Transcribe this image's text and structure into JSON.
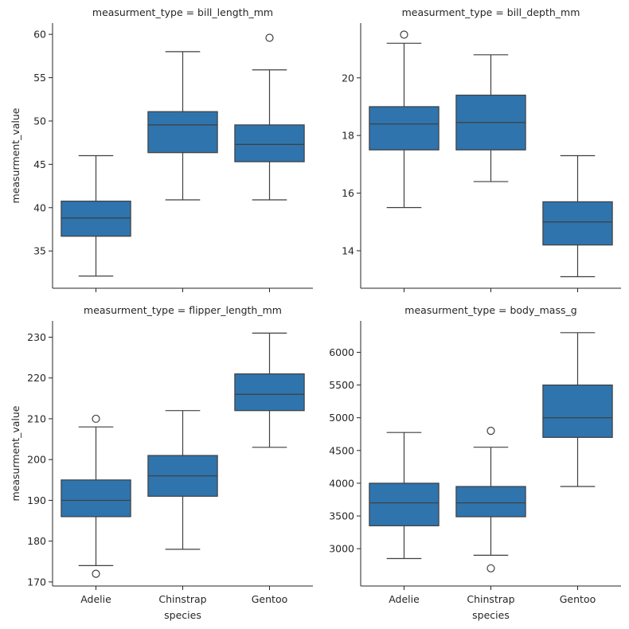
{
  "chart_data": [
    {
      "type": "box",
      "title": "measurment_type = bill_length_mm",
      "ylabel": "measurment_value",
      "xlabel": "",
      "ylim": [
        30.7,
        61.3
      ],
      "yticks": [
        35,
        40,
        45,
        50,
        55,
        60
      ],
      "categories": [
        "Adelie",
        "Chinstrap",
        "Gentoo"
      ],
      "show_xtick_labels": false,
      "boxes": [
        {
          "category": "Adelie",
          "whisker_low": 32.1,
          "q1": 36.7,
          "median": 38.8,
          "q3": 40.75,
          "whisker_high": 46.0,
          "outliers": []
        },
        {
          "category": "Chinstrap",
          "whisker_low": 40.9,
          "q1": 46.35,
          "median": 49.55,
          "q3": 51.08,
          "whisker_high": 58.0,
          "outliers": []
        },
        {
          "category": "Gentoo",
          "whisker_low": 40.9,
          "q1": 45.3,
          "median": 47.3,
          "q3": 49.55,
          "whisker_high": 55.9,
          "outliers": [
            59.6
          ]
        }
      ]
    },
    {
      "type": "box",
      "title": "measurment_type = bill_depth_mm",
      "ylabel": "",
      "xlabel": "",
      "ylim": [
        12.7,
        21.9
      ],
      "yticks": [
        14,
        16,
        18,
        20
      ],
      "categories": [
        "Adelie",
        "Chinstrap",
        "Gentoo"
      ],
      "show_xtick_labels": false,
      "boxes": [
        {
          "category": "Adelie",
          "whisker_low": 15.5,
          "q1": 17.5,
          "median": 18.4,
          "q3": 19.0,
          "whisker_high": 21.2,
          "outliers": [
            21.5
          ]
        },
        {
          "category": "Chinstrap",
          "whisker_low": 16.4,
          "q1": 17.5,
          "median": 18.45,
          "q3": 19.4,
          "whisker_high": 20.8,
          "outliers": []
        },
        {
          "category": "Gentoo",
          "whisker_low": 13.1,
          "q1": 14.2,
          "median": 15.0,
          "q3": 15.7,
          "whisker_high": 17.3,
          "outliers": []
        }
      ]
    },
    {
      "type": "box",
      "title": "measurment_type = flipper_length_mm",
      "ylabel": "measurment_value",
      "xlabel": "species",
      "ylim": [
        169,
        234
      ],
      "yticks": [
        170,
        180,
        190,
        200,
        210,
        220,
        230
      ],
      "categories": [
        "Adelie",
        "Chinstrap",
        "Gentoo"
      ],
      "show_xtick_labels": true,
      "boxes": [
        {
          "category": "Adelie",
          "whisker_low": 174,
          "q1": 186,
          "median": 190,
          "q3": 195,
          "whisker_high": 208,
          "outliers": [
            210,
            172
          ]
        },
        {
          "category": "Chinstrap",
          "whisker_low": 178,
          "q1": 191,
          "median": 196,
          "q3": 201,
          "whisker_high": 212,
          "outliers": []
        },
        {
          "category": "Gentoo",
          "whisker_low": 203,
          "q1": 212,
          "median": 216,
          "q3": 221,
          "whisker_high": 231,
          "outliers": []
        }
      ]
    },
    {
      "type": "box",
      "title": "measurment_type = body_mass_g",
      "ylabel": "",
      "xlabel": "species",
      "ylim": [
        2430,
        6480
      ],
      "yticks": [
        3000,
        3500,
        4000,
        4500,
        5000,
        5500,
        6000
      ],
      "categories": [
        "Adelie",
        "Chinstrap",
        "Gentoo"
      ],
      "show_xtick_labels": true,
      "boxes": [
        {
          "category": "Adelie",
          "whisker_low": 2850,
          "q1": 3350,
          "median": 3700,
          "q3": 4000,
          "whisker_high": 4775,
          "outliers": []
        },
        {
          "category": "Chinstrap",
          "whisker_low": 2900,
          "q1": 3488,
          "median": 3700,
          "q3": 3950,
          "whisker_high": 4550,
          "outliers": [
            4800,
            2700
          ]
        },
        {
          "category": "Gentoo",
          "whisker_low": 3950,
          "q1": 4700,
          "median": 5000,
          "q3": 5500,
          "whisker_high": 6300,
          "outliers": []
        }
      ]
    }
  ]
}
